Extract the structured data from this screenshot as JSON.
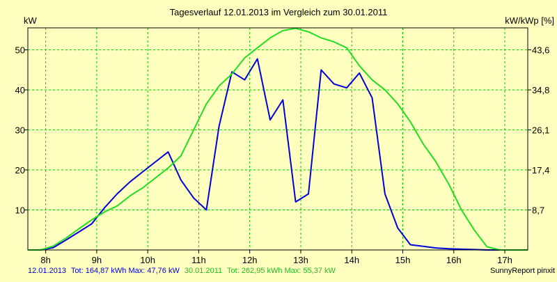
{
  "chart_data": {
    "type": "line",
    "title": "Tagesverlauf 12.01.2013 im Vergleich zum 30.01.2011",
    "ylabel_left": "kW",
    "ylabel_right": "kW/kWp [%]",
    "x_ticks": [
      "8h",
      "9h",
      "10h",
      "11h",
      "12h",
      "13h",
      "14h",
      "15h",
      "16h",
      "17h"
    ],
    "y_ticks_left": [
      "10",
      "20",
      "30",
      "40",
      "50"
    ],
    "y_ticks_right": [
      "8,7",
      "17,4",
      "26,1",
      "34,8",
      "43,6"
    ],
    "xlim": [
      7.65,
      17.45
    ],
    "ylim": [
      0,
      55.5
    ],
    "grid": true,
    "series": [
      {
        "name": "12.01.2013",
        "color": "#0000dd",
        "x": [
          7.65,
          7.9,
          8.15,
          8.4,
          8.65,
          8.9,
          9.15,
          9.4,
          9.65,
          9.9,
          10.15,
          10.4,
          10.65,
          10.9,
          11.15,
          11.4,
          11.65,
          11.9,
          12.15,
          12.4,
          12.65,
          12.9,
          13.15,
          13.4,
          13.65,
          13.9,
          14.15,
          14.4,
          14.65,
          14.9,
          15.15,
          15.4,
          15.65,
          15.9,
          16.15,
          16.4,
          16.65,
          16.9,
          17.15,
          17.45
        ],
        "y": [
          0,
          0,
          0.6,
          2.5,
          4.5,
          6.5,
          10.5,
          14,
          17,
          19.5,
          22,
          24.5,
          17.5,
          13,
          10,
          31,
          44.5,
          42.5,
          47.76,
          32.5,
          37.5,
          12,
          14,
          45,
          41.5,
          40.5,
          44.2,
          38,
          14,
          5.5,
          1.3,
          0.9,
          0.5,
          0.3,
          0.2,
          0.1,
          0,
          0,
          0,
          0
        ]
      },
      {
        "name": "30.01.2011",
        "color": "#22dd22",
        "x": [
          7.65,
          7.9,
          8.15,
          8.4,
          8.65,
          8.9,
          9.15,
          9.4,
          9.65,
          9.9,
          10.15,
          10.4,
          10.65,
          10.9,
          11.15,
          11.4,
          11.65,
          11.9,
          12.15,
          12.4,
          12.65,
          12.9,
          13.15,
          13.4,
          13.65,
          13.9,
          14.15,
          14.4,
          14.65,
          14.9,
          15.15,
          15.4,
          15.65,
          15.9,
          16.15,
          16.4,
          16.65,
          16.9,
          17.15,
          17.45
        ],
        "y": [
          0,
          0,
          1.0,
          3.0,
          5.3,
          7.5,
          9.5,
          11.0,
          13.5,
          15.5,
          18.0,
          20.5,
          23.5,
          30,
          36.5,
          41,
          44,
          48,
          50.5,
          53,
          54.8,
          55.37,
          54.5,
          53,
          52,
          50.5,
          46,
          42.5,
          40,
          36.5,
          32,
          26.5,
          22,
          16.5,
          10,
          5,
          0.8,
          0,
          0,
          0
        ]
      }
    ],
    "footer": {
      "series1_date": "12.01.2013",
      "series1_stats": "Tot: 164,87 kWh Max: 47,76 kW",
      "series2_date": "30.01.2011",
      "series2_stats": "Tot: 262,95 kWh Max: 55,37 kW",
      "credit": "SunnyReport pinxit"
    },
    "colors": {
      "background": "#ffffc0",
      "grid": "#00cc00",
      "axis": "#000000"
    }
  }
}
